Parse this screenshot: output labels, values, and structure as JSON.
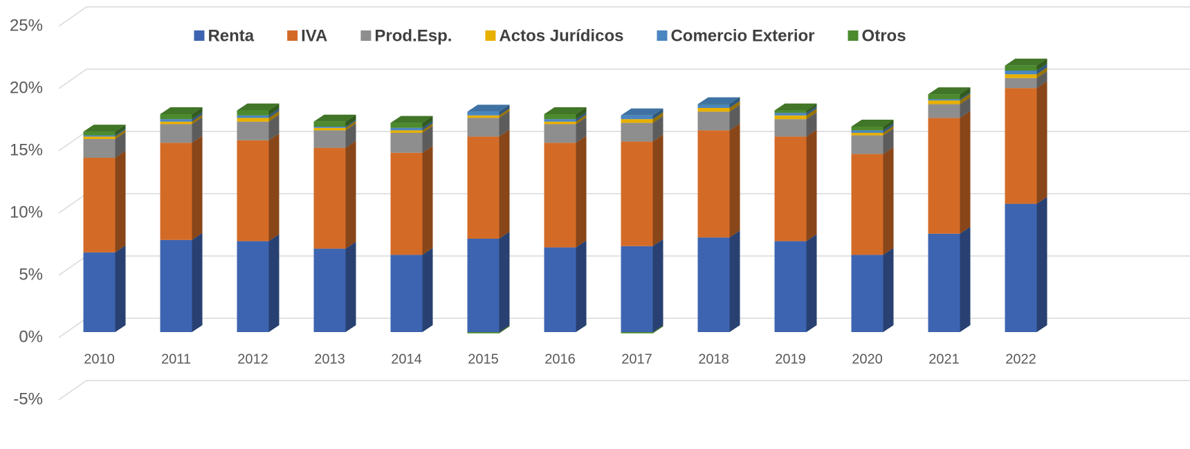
{
  "chart_data": {
    "type": "bar3d_stacked",
    "categories": [
      "2010",
      "2011",
      "2012",
      "2013",
      "2014",
      "2015",
      "2016",
      "2017",
      "2018",
      "2019",
      "2020",
      "2021",
      "2022"
    ],
    "series": [
      {
        "name": "Renta",
        "color": "#3d64b0",
        "values": [
          6.4,
          7.4,
          7.3,
          6.7,
          6.2,
          7.5,
          6.8,
          6.9,
          7.6,
          7.3,
          6.2,
          7.9,
          10.3
        ]
      },
      {
        "name": "IVA",
        "color": "#d36b27",
        "values": [
          7.6,
          7.8,
          8.1,
          8.1,
          8.2,
          8.2,
          8.4,
          8.4,
          8.6,
          8.4,
          8.1,
          9.3,
          9.3
        ]
      },
      {
        "name": "Prod.Esp.",
        "color": "#8e8e8e",
        "values": [
          1.5,
          1.5,
          1.5,
          1.4,
          1.6,
          1.5,
          1.5,
          1.5,
          1.5,
          1.4,
          1.5,
          1.1,
          0.8
        ]
      },
      {
        "name": "Actos Jurídicos",
        "color": "#e8b000",
        "values": [
          0.2,
          0.2,
          0.3,
          0.2,
          0.2,
          0.2,
          0.2,
          0.3,
          0.3,
          0.3,
          0.2,
          0.3,
          0.3
        ]
      },
      {
        "name": "Comercio Exterior",
        "color": "#4a86c0",
        "values": [
          0.1,
          0.2,
          0.2,
          0.1,
          0.2,
          0.3,
          0.2,
          0.3,
          0.3,
          0.2,
          0.2,
          0.1,
          0.3
        ]
      },
      {
        "name": "Otros",
        "color": "#4c8a2e",
        "values": [
          0.3,
          0.4,
          0.4,
          0.4,
          0.4,
          -0.1,
          0.4,
          -0.1,
          0,
          0.2,
          0.3,
          0.4,
          0.4
        ]
      }
    ],
    "ylim": [
      -5,
      25
    ],
    "yticks": [
      {
        "value": -5,
        "label": "-5%"
      },
      {
        "value": 0,
        "label": "0%"
      },
      {
        "value": 5,
        "label": "5%"
      },
      {
        "value": 10,
        "label": "10%"
      },
      {
        "value": 15,
        "label": "15%"
      },
      {
        "value": 20,
        "label": "20%"
      },
      {
        "value": 25,
        "label": "25%"
      }
    ],
    "grid": true,
    "legend": "top"
  }
}
